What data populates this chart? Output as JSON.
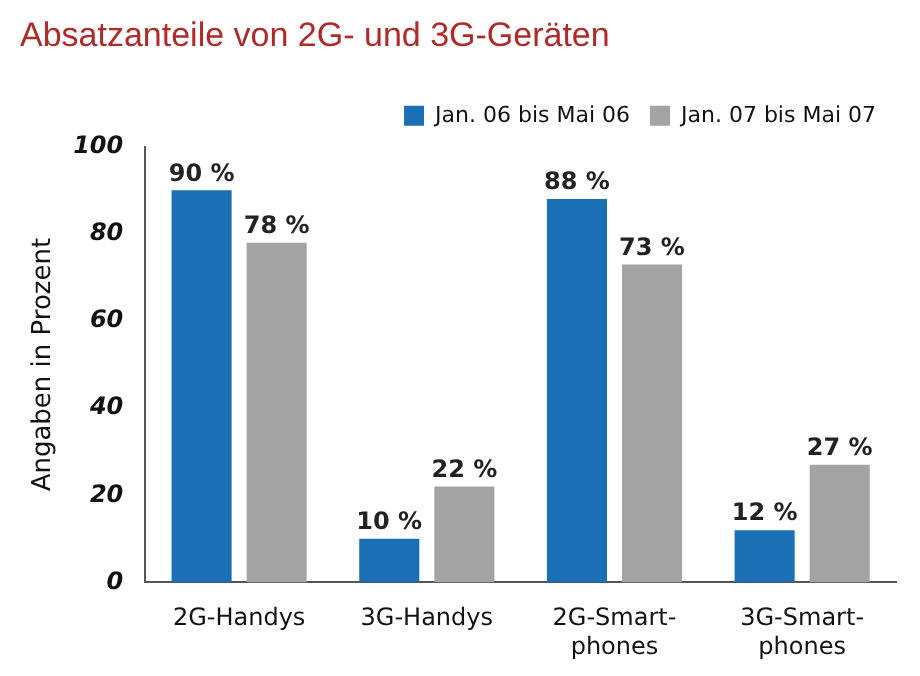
{
  "chart_data": {
    "type": "bar",
    "title": "Absatzanteile von 2G- und 3G-Geräten",
    "ylabel": "Angaben in Prozent",
    "categories": [
      "2G-Handys",
      "3G-Handys",
      "2G-Smart-\nphones",
      "3G-Smart-\nphones"
    ],
    "series": [
      {
        "name": "Jan. 06 bis Mai 06",
        "color": "#1a6fb5",
        "values": [
          90,
          10,
          88,
          12
        ],
        "value_labels": [
          "90 %",
          "10 %",
          "88 %",
          "12 %"
        ]
      },
      {
        "name": "Jan. 07 bis Mai 07",
        "color": "#a3a3a3",
        "values": [
          78,
          22,
          73,
          27
        ],
        "value_labels": [
          "78 %",
          "22 %",
          "73 %",
          "27 %"
        ]
      }
    ],
    "ylim": [
      0,
      100
    ],
    "yticks": [
      0,
      20,
      40,
      60,
      80,
      100
    ],
    "grid": false,
    "legend": "top right"
  }
}
